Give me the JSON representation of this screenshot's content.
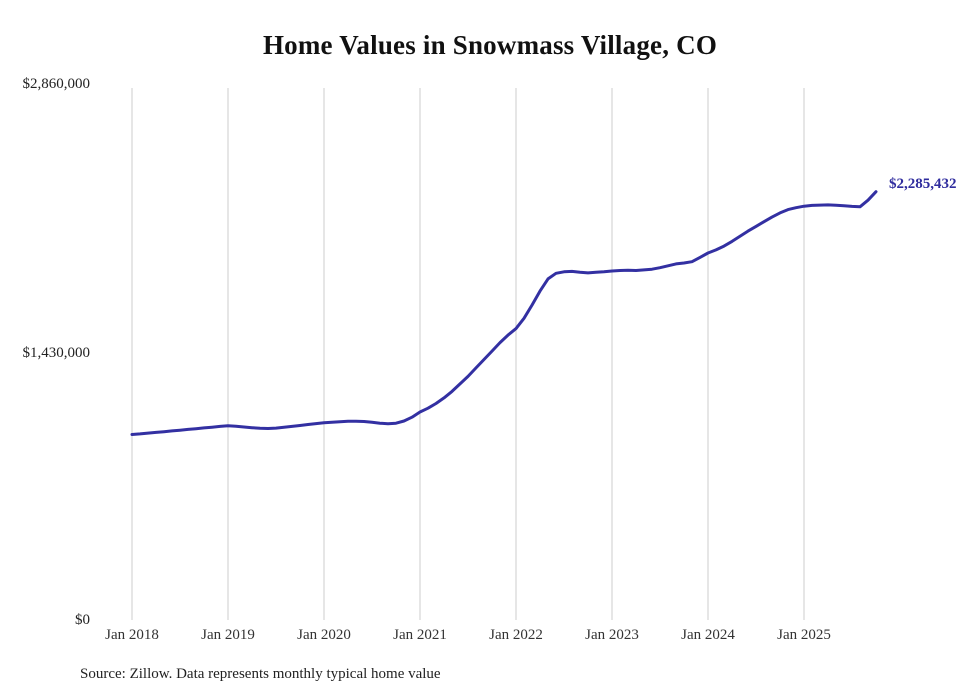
{
  "page": {
    "source_note": "Source: Zillow. Data represents monthly typical home value"
  },
  "chart_data": {
    "type": "line",
    "title": "Home Values in Snowmass Village, CO",
    "series_name": "Monthly typical home value",
    "x_frequency": "monthly",
    "x_start": "Jan 2018",
    "x_end": "Oct 2025",
    "values": [
      990000,
      993000,
      997000,
      1001000,
      1005000,
      1009000,
      1013000,
      1017000,
      1021000,
      1025000,
      1029000,
      1033000,
      1036000,
      1034000,
      1030000,
      1026000,
      1023000,
      1022000,
      1024000,
      1028000,
      1033000,
      1038000,
      1043000,
      1048000,
      1052000,
      1055000,
      1058000,
      1060000,
      1061000,
      1059000,
      1055000,
      1050000,
      1047000,
      1050000,
      1062000,
      1082000,
      1110000,
      1130000,
      1155000,
      1185000,
      1220000,
      1260000,
      1300000,
      1345000,
      1390000,
      1435000,
      1480000,
      1520000,
      1555000,
      1610000,
      1680000,
      1755000,
      1820000,
      1850000,
      1858000,
      1860000,
      1855000,
      1852000,
      1855000,
      1858000,
      1862000,
      1865000,
      1866000,
      1865000,
      1868000,
      1872000,
      1880000,
      1890000,
      1900000,
      1905000,
      1912000,
      1935000,
      1958000,
      1975000,
      1995000,
      2020000,
      2048000,
      2075000,
      2100000,
      2125000,
      2150000,
      2172000,
      2190000,
      2200000,
      2208000,
      2212000,
      2214000,
      2215000,
      2213000,
      2210000,
      2207000,
      2205000,
      2240000,
      2285432
    ],
    "end_value": 2285432,
    "end_label": "$2,285,432",
    "y_ticks": [
      {
        "label": "$0",
        "value": 0
      },
      {
        "label": "$1,430,000",
        "value": 1430000
      },
      {
        "label": "$2,860,000",
        "value": 2860000
      }
    ],
    "x_ticks": [
      "Jan 2018",
      "Jan 2019",
      "Jan 2020",
      "Jan 2021",
      "Jan 2022",
      "Jan 2023",
      "Jan 2024",
      "Jan 2025"
    ],
    "ylim": [
      0,
      2860000
    ],
    "grid": "vertical",
    "legend": "none",
    "line_color": "#3330a2",
    "grid_color": "#cccccc"
  }
}
